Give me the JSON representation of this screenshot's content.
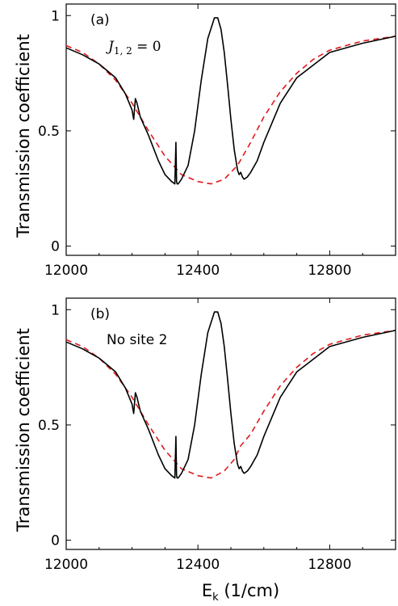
{
  "figure": {
    "xlabel_main": "E",
    "xlabel_sub": "k",
    "xlabel_unit": " (1/cm)",
    "ylabel": "Transmission coefficient"
  },
  "chart_data": [
    {
      "type": "line",
      "panel_label": "(a)",
      "annotation": {
        "base": "J",
        "sub": "1, 2",
        "rest": " = 0"
      },
      "ylabel": "Transmission coefficient",
      "xlabel": "",
      "xlim": [
        12000,
        13000
      ],
      "ylim": [
        0,
        1
      ],
      "xticks": [
        12000,
        12400,
        12800
      ],
      "xtick_labels": [
        "12000",
        "12400",
        "12800"
      ],
      "yticks": [
        0,
        0.5,
        1
      ],
      "ytick_labels": [
        "0",
        "0.5",
        "1"
      ],
      "grid": false,
      "series": [
        {
          "style": "solid",
          "color": "#000000",
          "x": [
            12000,
            12050,
            12100,
            12150,
            12180,
            12200,
            12205,
            12210,
            12215,
            12225,
            12250,
            12280,
            12300,
            12320,
            12330,
            12333,
            12335,
            12337,
            12340,
            12350,
            12370,
            12390,
            12410,
            12430,
            12450,
            12460,
            12470,
            12480,
            12490,
            12500,
            12510,
            12520,
            12525,
            12530,
            12535,
            12540,
            12550,
            12560,
            12580,
            12600,
            12650,
            12700,
            12800,
            12900,
            13000
          ],
          "y": [
            0.86,
            0.83,
            0.79,
            0.73,
            0.66,
            0.59,
            0.55,
            0.64,
            0.62,
            0.56,
            0.48,
            0.37,
            0.31,
            0.28,
            0.27,
            0.45,
            0.28,
            0.27,
            0.27,
            0.29,
            0.35,
            0.5,
            0.72,
            0.9,
            0.99,
            0.99,
            0.94,
            0.84,
            0.7,
            0.55,
            0.42,
            0.33,
            0.31,
            0.32,
            0.3,
            0.29,
            0.3,
            0.32,
            0.37,
            0.45,
            0.62,
            0.73,
            0.84,
            0.88,
            0.91
          ]
        },
        {
          "style": "dashed",
          "color": "#e0191c",
          "x": [
            12000,
            12050,
            12100,
            12150,
            12200,
            12250,
            12300,
            12350,
            12400,
            12440,
            12480,
            12520,
            12560,
            12600,
            12650,
            12700,
            12750,
            12800,
            12850,
            12900,
            12950,
            13000
          ],
          "y": [
            0.87,
            0.84,
            0.79,
            0.72,
            0.62,
            0.5,
            0.39,
            0.31,
            0.28,
            0.27,
            0.29,
            0.35,
            0.45,
            0.56,
            0.67,
            0.75,
            0.81,
            0.85,
            0.87,
            0.89,
            0.9,
            0.91
          ]
        }
      ]
    },
    {
      "type": "line",
      "panel_label": "(b)",
      "annotation": {
        "base": "No site 2",
        "sub": "",
        "rest": ""
      },
      "ylabel": "Transmission coefficient",
      "xlabel": "E_k (1/cm)",
      "xlim": [
        12000,
        13000
      ],
      "ylim": [
        0,
        1
      ],
      "xticks": [
        12000,
        12400,
        12800
      ],
      "xtick_labels": [
        "12000",
        "12400",
        "12800"
      ],
      "yticks": [
        0,
        0.5,
        1
      ],
      "ytick_labels": [
        "0",
        "0.5",
        "1"
      ],
      "grid": false,
      "series": [
        {
          "style": "solid",
          "color": "#000000",
          "x": [
            12000,
            12050,
            12100,
            12150,
            12180,
            12200,
            12205,
            12210,
            12215,
            12225,
            12250,
            12280,
            12300,
            12320,
            12330,
            12333,
            12335,
            12337,
            12340,
            12350,
            12370,
            12390,
            12410,
            12430,
            12450,
            12460,
            12470,
            12480,
            12490,
            12500,
            12510,
            12520,
            12525,
            12530,
            12535,
            12540,
            12550,
            12560,
            12580,
            12600,
            12650,
            12700,
            12800,
            12900,
            13000
          ],
          "y": [
            0.86,
            0.83,
            0.79,
            0.73,
            0.66,
            0.59,
            0.55,
            0.64,
            0.62,
            0.56,
            0.48,
            0.37,
            0.31,
            0.28,
            0.27,
            0.45,
            0.28,
            0.27,
            0.27,
            0.29,
            0.35,
            0.5,
            0.72,
            0.9,
            0.99,
            0.99,
            0.94,
            0.84,
            0.7,
            0.55,
            0.42,
            0.33,
            0.31,
            0.32,
            0.3,
            0.29,
            0.3,
            0.32,
            0.37,
            0.45,
            0.62,
            0.73,
            0.84,
            0.88,
            0.91
          ]
        },
        {
          "style": "dashed",
          "color": "#e0191c",
          "x": [
            12000,
            12050,
            12100,
            12150,
            12200,
            12250,
            12300,
            12350,
            12400,
            12440,
            12480,
            12510,
            12520,
            12530,
            12560,
            12600,
            12650,
            12700,
            12750,
            12800,
            12850,
            12900,
            12950,
            13000
          ],
          "y": [
            0.87,
            0.84,
            0.79,
            0.72,
            0.62,
            0.5,
            0.39,
            0.31,
            0.28,
            0.27,
            0.3,
            0.35,
            0.38,
            0.41,
            0.46,
            0.56,
            0.67,
            0.75,
            0.81,
            0.85,
            0.87,
            0.89,
            0.9,
            0.91
          ]
        }
      ]
    }
  ]
}
